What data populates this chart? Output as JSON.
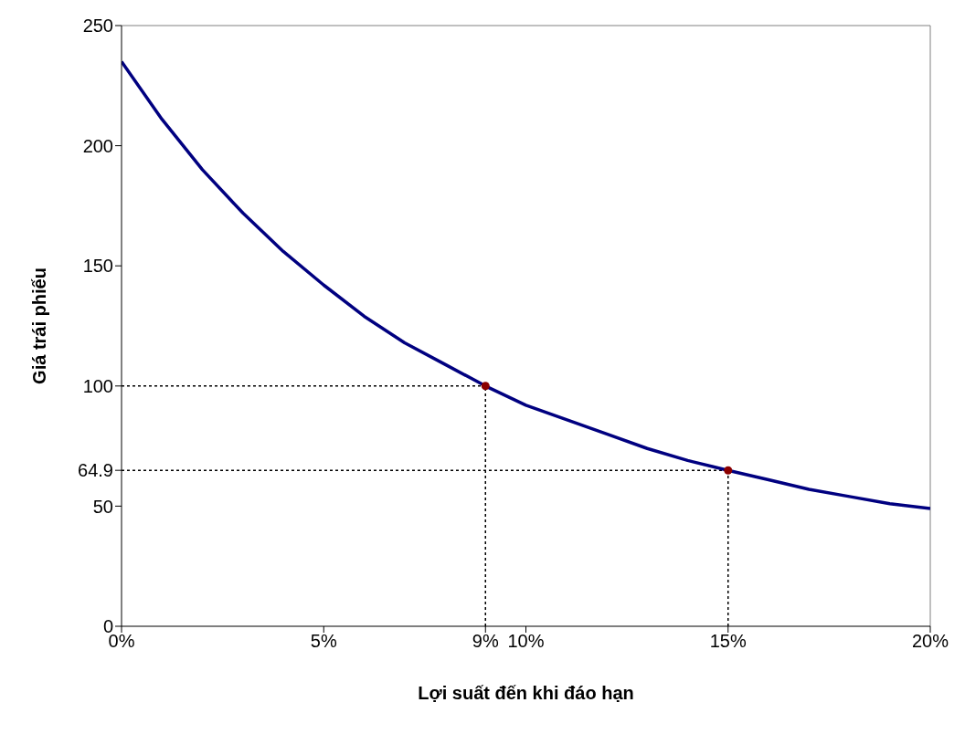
{
  "chart_data": {
    "type": "line",
    "xlabel": "Lợi suất đến khi đáo hạn",
    "ylabel": "Giá trái phiếu",
    "xlim": [
      0,
      20
    ],
    "xticks": [
      {
        "value": 0,
        "label": "0%"
      },
      {
        "value": 5,
        "label": "5%"
      },
      {
        "value": 9,
        "label": "9%"
      },
      {
        "value": 10,
        "label": "10%"
      },
      {
        "value": 15,
        "label": "15%"
      },
      {
        "value": 20,
        "label": "20%"
      }
    ],
    "ylim": [
      0,
      250
    ],
    "yticks": [
      0,
      50,
      64.9,
      100,
      150,
      200,
      250
    ],
    "grid": false,
    "series": [
      {
        "color": "#000080",
        "marker": "none",
        "line_style": "solid",
        "x": [
          0,
          1,
          2,
          3,
          4,
          5,
          6,
          7,
          8,
          9,
          10,
          11,
          12,
          13,
          14,
          15,
          16,
          17,
          18,
          19,
          20
        ],
        "values": [
          235,
          211,
          190,
          172,
          156,
          142,
          129,
          118,
          109,
          100,
          92,
          86,
          80,
          74,
          69,
          64.9,
          61,
          57,
          54,
          51,
          49
        ]
      },
      {
        "type": "scatter",
        "color": "#8b0000",
        "marker": "circle",
        "x": [
          9,
          15
        ],
        "values": [
          100,
          64.9
        ]
      }
    ],
    "ref_lines": [
      {
        "axis": "x",
        "value": 9,
        "line_style": "dotted",
        "color": "#000000"
      },
      {
        "axis": "x",
        "value": 15,
        "line_style": "dotted",
        "color": "#000000"
      },
      {
        "axis": "y",
        "value": 100,
        "line_style": "dotted",
        "color": "#000000"
      },
      {
        "axis": "y",
        "value": 64.9,
        "line_style": "dotted",
        "color": "#000000"
      }
    ]
  }
}
